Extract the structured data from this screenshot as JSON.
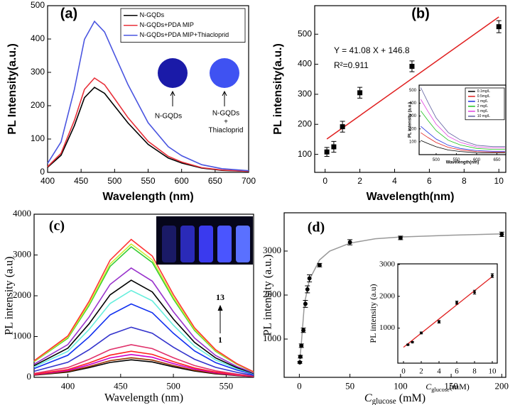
{
  "chart_data": [
    {
      "type": "line",
      "label": "(a)",
      "xlabel": "Wavelength (nm)",
      "ylabel": "PL Intensity(a.u.)",
      "x": [
        400,
        420,
        440,
        455,
        470,
        485,
        500,
        520,
        550,
        580,
        600,
        630,
        660,
        700
      ],
      "series": [
        {
          "name": "N-GQDs",
          "color": "#000000",
          "values": [
            15,
            51,
            140,
            224,
            255,
            237,
            199,
            148,
            84,
            43,
            28,
            13,
            6,
            3
          ]
        },
        {
          "name": "N-GQDs+PDA  MIP",
          "color": "#e8303a",
          "values": [
            17,
            57,
            156,
            249,
            283,
            263,
            221,
            164,
            93,
            48,
            31,
            14,
            7,
            3
          ]
        },
        {
          "name": "N-GQDs+PDA  MIP+Thiacloprid",
          "color": "#4a55e0",
          "values": [
            27,
            91,
            249,
            399,
            453,
            421,
            353,
            263,
            149,
            77,
            50,
            23,
            11,
            5
          ]
        }
      ],
      "xlim": [
        400,
        700
      ],
      "xticks": [
        400,
        450,
        500,
        550,
        600,
        650,
        700
      ],
      "ylim": [
        0,
        500
      ],
      "yticks": [
        0,
        100,
        200,
        300,
        400,
        500
      ],
      "annotations": [
        "N-GQDs",
        "N-GQDs",
        "+",
        "Thiacloprid"
      ]
    },
    {
      "type": "scatter",
      "label": "(b)",
      "xlabel": "Wavelength(nm)",
      "ylabel": "PL intensity(a.u.)",
      "marker": "square",
      "color": "#000000",
      "x": [
        0.1,
        0.5,
        1,
        2,
        5,
        10
      ],
      "values": [
        108,
        125,
        192,
        305,
        393,
        525
      ],
      "errors": [
        15,
        18,
        18,
        18,
        18,
        20
      ],
      "fit": {
        "slope": 41.08,
        "intercept": 146.8,
        "color": "#e02020"
      },
      "equation": "Y = 41.08 X + 146.8",
      "r2": "R²=0.911",
      "xlim": [
        -0.6,
        10.4
      ],
      "xticks": [
        0,
        2,
        4,
        6,
        8,
        10
      ],
      "ylim": [
        40,
        595
      ],
      "yticks": [
        100,
        200,
        300,
        400,
        500
      ],
      "inset": {
        "type": "line",
        "xlabel": "Wavelength(nm)",
        "ylabel": "PL intensity (a.u.)",
        "x": [
          462,
          480,
          500,
          530,
          560,
          600,
          640,
          670
        ],
        "series": [
          {
            "name": "0.1mg/L",
            "color": "#000000",
            "values": [
              110,
              86,
              61,
              36,
              24,
              15,
              13,
              13
            ]
          },
          {
            "name": "0.5mg/L",
            "color": "#e02020",
            "values": [
              170,
              133,
              94,
              56,
              37,
              24,
              20,
              20
            ]
          },
          {
            "name": "1  mg/L",
            "color": "#2030e0",
            "values": [
              220,
              172,
              121,
              73,
              48,
              31,
              26,
              26
            ]
          },
          {
            "name": "2  mg/L",
            "color": "#20c020",
            "values": [
              340,
              265,
              187,
              112,
              75,
              48,
              41,
              41
            ]
          },
          {
            "name": "5  mg/L",
            "color": "#e040e0",
            "values": [
              430,
              335,
              237,
              142,
              95,
              60,
              52,
              52
            ]
          },
          {
            "name": "10  mg/L",
            "color": "#6060a0",
            "values": [
              520,
              406,
              286,
              172,
              114,
              73,
              62,
              62
            ]
          }
        ],
        "xlim": [
          458,
          672
        ],
        "xticks": [
          500,
          550,
          600,
          650
        ],
        "ylim": [
          0,
          540
        ],
        "yticks": [
          100,
          200,
          300,
          400,
          500
        ]
      }
    },
    {
      "type": "line",
      "label": "(c)",
      "xlabel": "Wavelength (nm)",
      "ylabel": "PL intensity (a.u)",
      "x": [
        368,
        400,
        420,
        440,
        460,
        480,
        500,
        520,
        540,
        560,
        576
      ],
      "series": [
        {
          "color": "#000000",
          "values": [
            52,
            129,
            237,
            366,
            430,
            378,
            258,
            155,
            86,
            43,
            17
          ]
        },
        {
          "color": "#993300",
          "values": [
            58,
            144,
            264,
            408,
            480,
            422,
            288,
            173,
            96,
            48,
            19
          ]
        },
        {
          "color": "#cc00cc",
          "values": [
            67,
            168,
            308,
            476,
            560,
            493,
            336,
            202,
            112,
            56,
            22
          ]
        },
        {
          "color": "#ff2020",
          "values": [
            77,
            192,
            352,
            544,
            640,
            563,
            384,
            230,
            128,
            64,
            26
          ]
        },
        {
          "color": "#e0306a",
          "values": [
            96,
            240,
            440,
            680,
            800,
            704,
            480,
            288,
            160,
            80,
            32
          ]
        },
        {
          "color": "#3333cc",
          "values": [
            148,
            369,
            677,
            1046,
            1230,
            1082,
            738,
            443,
            246,
            123,
            49
          ]
        },
        {
          "color": "#1030f0",
          "values": [
            216,
            540,
            990,
            1530,
            1800,
            1584,
            1080,
            648,
            360,
            180,
            72
          ]
        },
        {
          "color": "#66eedd",
          "values": [
            256,
            639,
            1172,
            1811,
            2130,
            1874,
            1278,
            767,
            426,
            213,
            85
          ]
        },
        {
          "color": "#000000",
          "values": [
            286,
            714,
            1309,
            2023,
            2380,
            2094,
            1428,
            857,
            476,
            238,
            95
          ]
        },
        {
          "color": "#9933cc",
          "values": [
            322,
            804,
            1474,
            2278,
            2680,
            2358,
            1608,
            965,
            536,
            268,
            107
          ]
        },
        {
          "color": "#33cc33",
          "values": [
            384,
            960,
            1760,
            2720,
            3200,
            2816,
            1920,
            1152,
            640,
            320,
            128
          ]
        },
        {
          "color": "#ccee33",
          "values": [
            392,
            981,
            1799,
            2780,
            3270,
            2878,
            1962,
            1177,
            654,
            327,
            131
          ]
        },
        {
          "color": "#ff3333",
          "values": [
            406,
            1014,
            1859,
            2873,
            3380,
            2974,
            2028,
            1217,
            676,
            338,
            135
          ]
        }
      ],
      "xlim": [
        368,
        576
      ],
      "xticks": [
        400,
        450,
        500,
        550
      ],
      "ylim": [
        0,
        4000
      ],
      "yticks": [
        0,
        1000,
        2000,
        3000,
        4000
      ],
      "annotations": [
        "13",
        "1"
      ]
    },
    {
      "type": "scatter",
      "label": "(d)",
      "xlabel": {
        "text": "C",
        "subscript": "glucose",
        "unit": " (mM)"
      },
      "ylabel": "PL intensity (a.u.)",
      "marker": "circle",
      "color": "#000000",
      "x": [
        0.5,
        1,
        2,
        4,
        6,
        8,
        10,
        20,
        50,
        100,
        200
      ],
      "values": [
        470,
        600,
        850,
        1200,
        1800,
        2130,
        2380,
        2680,
        3200,
        3300,
        3380
      ],
      "errors": [
        20,
        30,
        40,
        50,
        80,
        80,
        80,
        40,
        60,
        40,
        50
      ],
      "curve": {
        "color": "#999999",
        "x": [
          0,
          2,
          5,
          10,
          20,
          30,
          50,
          75,
          100,
          150,
          200
        ],
        "values": [
          420,
          900,
          1800,
          2350,
          2800,
          3000,
          3180,
          3280,
          3320,
          3360,
          3390
        ]
      },
      "xlim": [
        -15,
        204
      ],
      "xticks": [
        0,
        50,
        100,
        150,
        200
      ],
      "ylim": [
        130,
        3870
      ],
      "yticks": [
        1000,
        2000,
        3000
      ],
      "inset": {
        "type": "scatter",
        "marker": "circle",
        "color": "#000000",
        "xlabel": {
          "text": "C",
          "subscript": "glucose",
          "unit": "(mM)"
        },
        "ylabel": "PL intensity (a.u)",
        "x": [
          0.5,
          1,
          2,
          4,
          6,
          8,
          10
        ],
        "values": [
          480,
          560,
          850,
          1200,
          1800,
          2130,
          2650
        ],
        "errors": [
          20,
          20,
          30,
          40,
          50,
          60,
          60
        ],
        "fit_line": {
          "color": "#e02020",
          "x": [
            0,
            10
          ],
          "values": [
            400,
            2620
          ]
        },
        "xlim": [
          -0.64,
          10.56
        ],
        "xticks": [
          0,
          2,
          4,
          6,
          8,
          10
        ],
        "ylim": [
          -100,
          3020
        ],
        "yticks": [
          1000,
          2000,
          3000
        ]
      }
    }
  ]
}
